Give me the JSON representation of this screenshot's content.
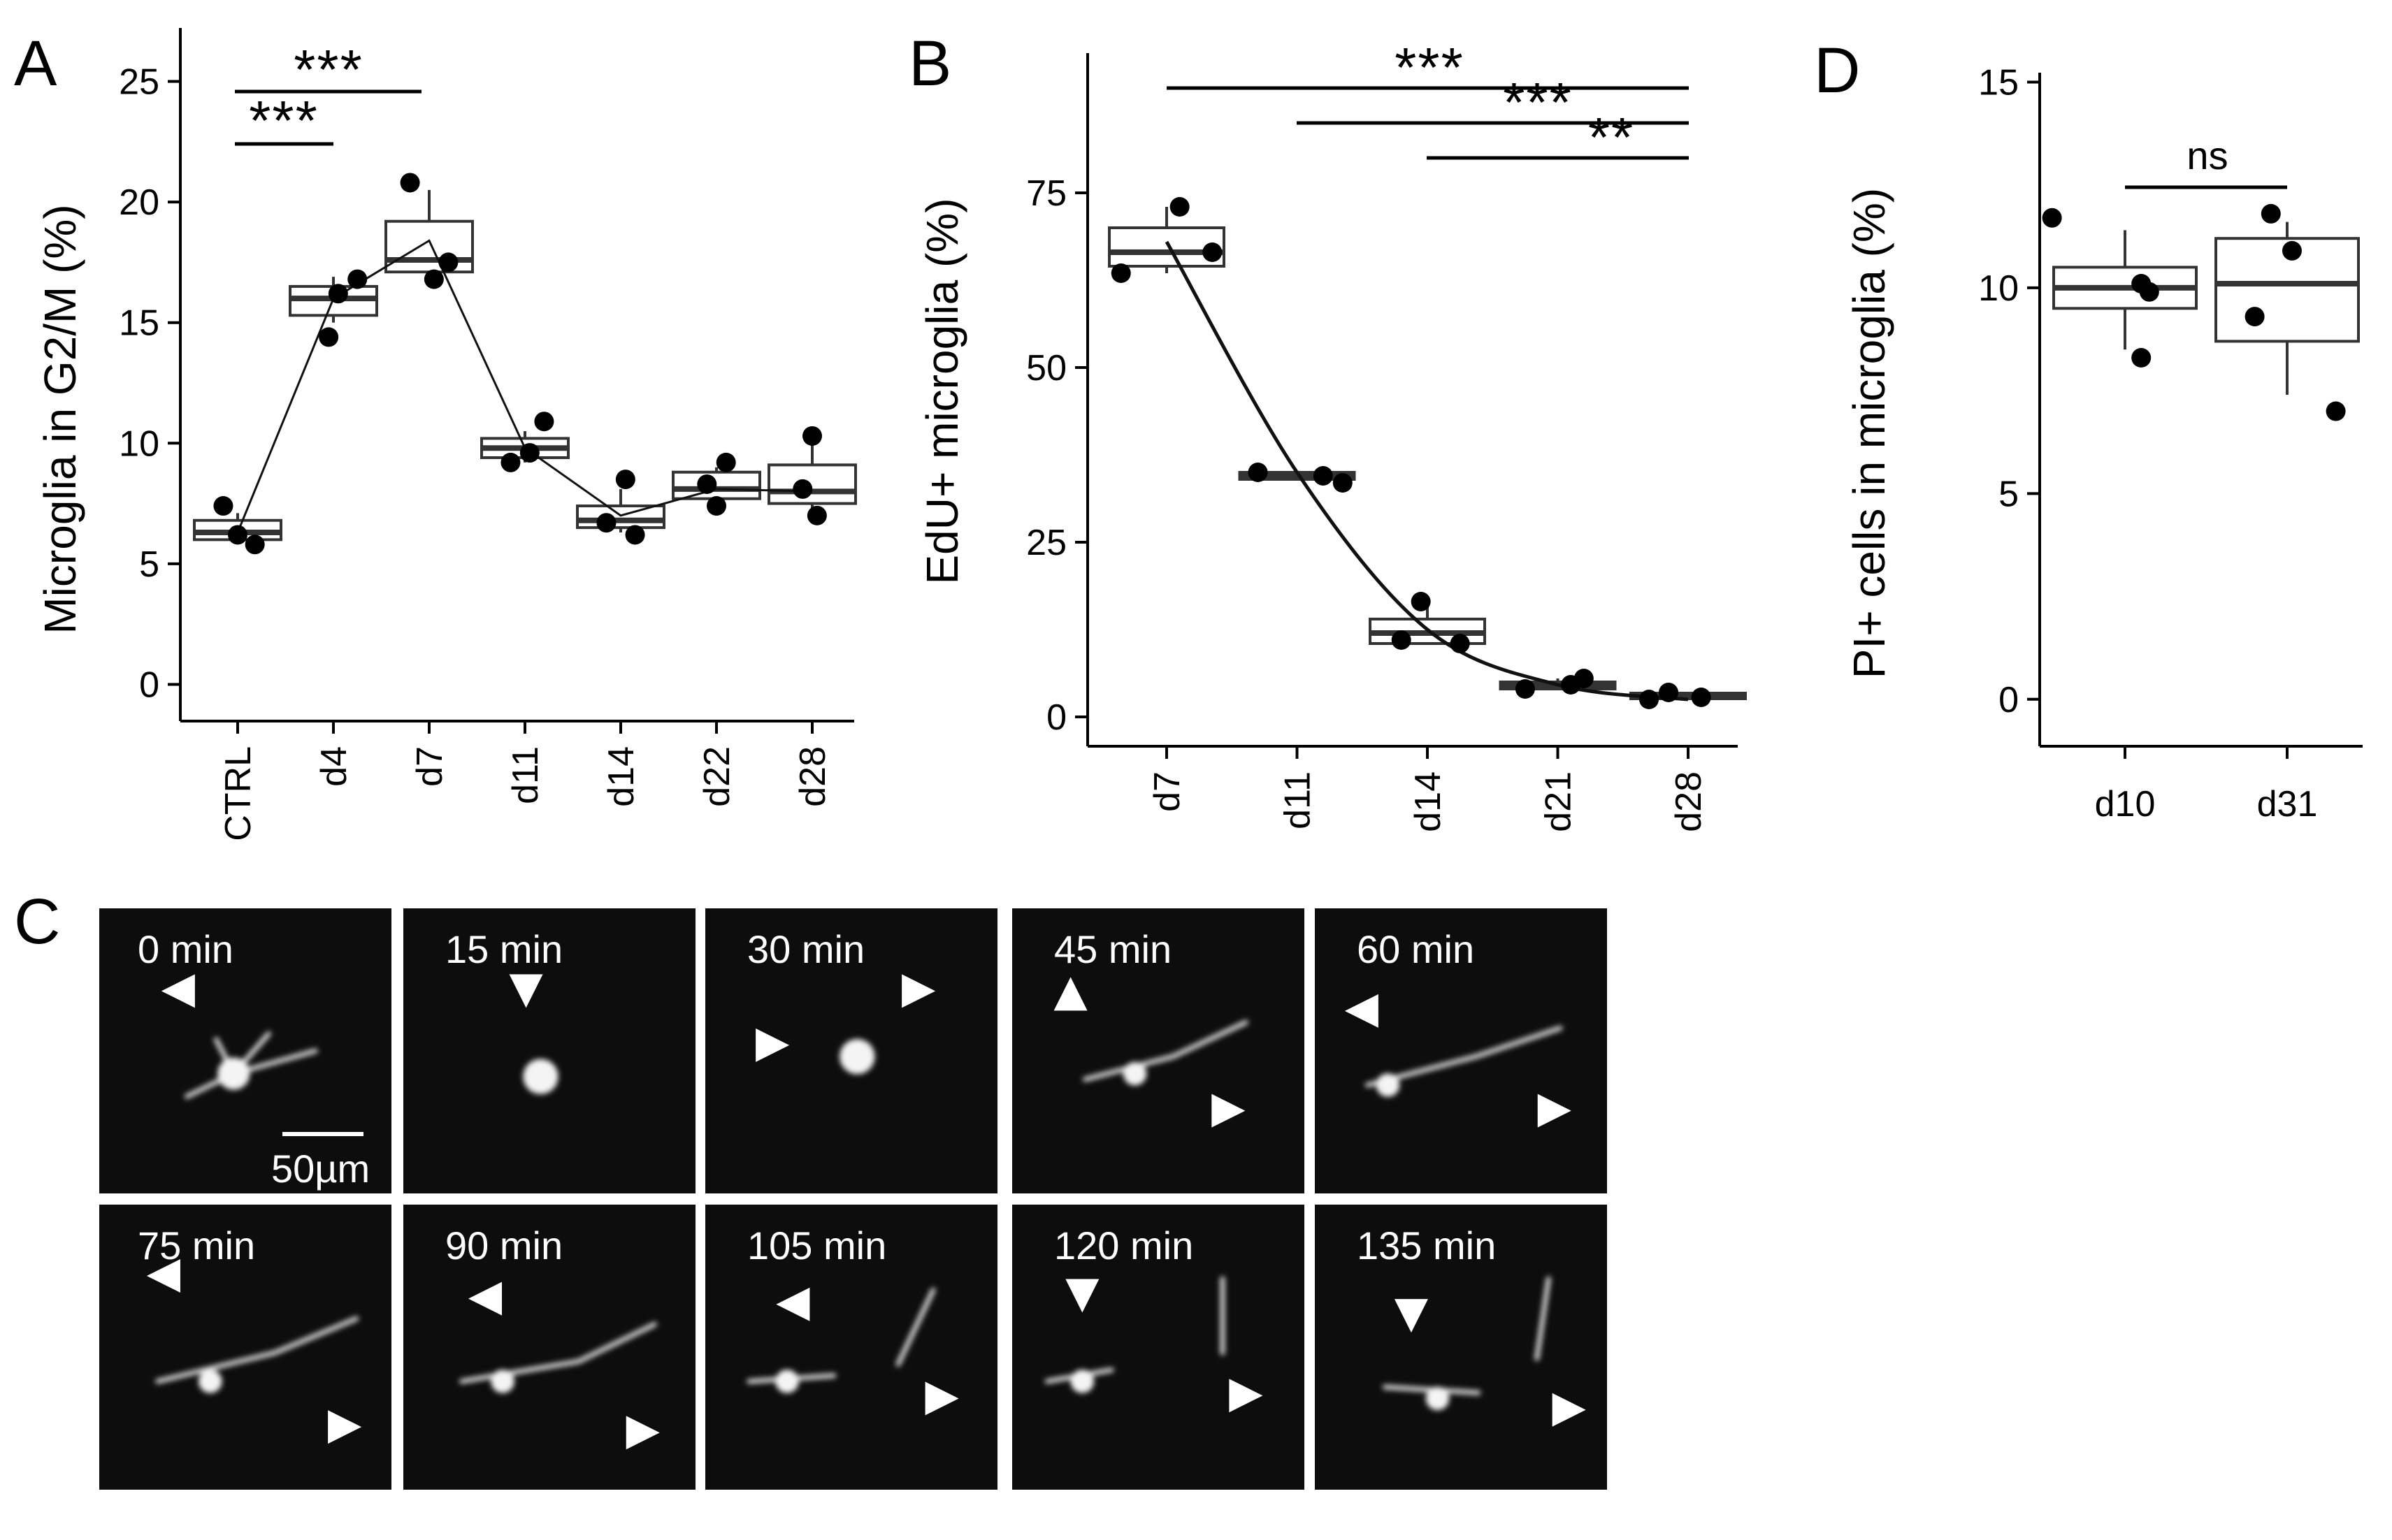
{
  "chart_data": [
    {
      "panel": "A",
      "type": "box",
      "ylabel": "Microglia in G2/M (%)",
      "ylim": [
        -1,
        26
      ],
      "yticks": [
        0,
        5,
        10,
        15,
        20,
        25
      ],
      "categories": [
        "CTRL",
        "d4",
        "d7",
        "d11",
        "d14",
        "d22",
        "d28"
      ],
      "boxes": [
        {
          "q1": 6.0,
          "median": 6.3,
          "q3": 6.8,
          "whisk_lo": 5.9,
          "whisk_hi": 7.1
        },
        {
          "q1": 15.3,
          "median": 16.0,
          "q3": 16.5,
          "whisk_lo": 15.0,
          "whisk_hi": 16.9
        },
        {
          "q1": 17.1,
          "median": 17.6,
          "q3": 19.2,
          "whisk_lo": 17.0,
          "whisk_hi": 20.5
        },
        {
          "q1": 9.4,
          "median": 9.8,
          "q3": 10.2,
          "whisk_lo": 9.2,
          "whisk_hi": 10.5
        },
        {
          "q1": 6.5,
          "median": 6.8,
          "q3": 7.4,
          "whisk_lo": 6.3,
          "whisk_hi": 8.1
        },
        {
          "q1": 7.7,
          "median": 8.1,
          "q3": 8.8,
          "whisk_lo": 7.5,
          "whisk_hi": 9.0
        },
        {
          "q1": 7.5,
          "median": 8.0,
          "q3": 9.1,
          "whisk_lo": 7.1,
          "whisk_hi": 10.0
        }
      ],
      "points": [
        [
          [
            -0.15,
            7.4
          ],
          [
            0.0,
            6.2
          ],
          [
            0.18,
            5.8
          ]
        ],
        [
          [
            -0.05,
            14.4
          ],
          [
            0.05,
            16.2
          ],
          [
            0.25,
            16.8
          ]
        ],
        [
          [
            -0.2,
            20.8
          ],
          [
            0.05,
            16.8
          ],
          [
            0.2,
            17.5
          ]
        ],
        [
          [
            -0.15,
            9.2
          ],
          [
            0.05,
            9.6
          ],
          [
            0.2,
            10.9
          ]
        ],
        [
          [
            -0.15,
            6.7
          ],
          [
            0.05,
            8.5
          ],
          [
            0.15,
            6.2
          ]
        ],
        [
          [
            -0.1,
            8.3
          ],
          [
            0.0,
            7.4
          ],
          [
            0.1,
            9.2
          ]
        ],
        [
          [
            -0.1,
            8.1
          ],
          [
            0.0,
            10.3
          ],
          [
            0.05,
            7.0
          ]
        ]
      ],
      "trend": [
        6.3,
        16.0,
        18.4,
        9.8,
        7.0,
        8.1,
        8.0
      ],
      "significance": [
        {
          "from": "CTRL",
          "to": "d7",
          "label": "***"
        },
        {
          "from": "CTRL",
          "to": "d4",
          "label": "***"
        }
      ]
    },
    {
      "panel": "B",
      "type": "box",
      "ylabel": "EdU+ microglia (%)",
      "ylim": [
        -3,
        95
      ],
      "yticks": [
        0,
        25,
        50,
        75
      ],
      "categories": [
        "d7",
        "d11",
        "d14",
        "d21",
        "d28"
      ],
      "boxes": [
        {
          "q1": 64.5,
          "median": 66.5,
          "q3": 70.0,
          "whisk_lo": 63.5,
          "whisk_hi": 73.0
        },
        {
          "q1": 34.0,
          "median": 34.5,
          "q3": 35.0,
          "whisk_lo": 34.0,
          "whisk_hi": 35.0
        },
        {
          "q1": 10.5,
          "median": 12.0,
          "q3": 14.0,
          "whisk_lo": 10.5,
          "whisk_hi": 16.5
        },
        {
          "q1": 4.0,
          "median": 4.6,
          "q3": 5.0,
          "whisk_lo": 4.0,
          "whisk_hi": 5.5
        },
        {
          "q1": 2.6,
          "median": 3.0,
          "q3": 3.4,
          "whisk_lo": 2.5,
          "whisk_hi": 3.6
        }
      ],
      "points": [
        [
          [
            -0.35,
            63.5
          ],
          [
            0.1,
            73.0
          ],
          [
            0.35,
            66.5
          ]
        ],
        [
          [
            -0.3,
            35.0
          ],
          [
            0.2,
            34.5
          ],
          [
            0.35,
            33.5
          ]
        ],
        [
          [
            -0.2,
            11.0
          ],
          [
            -0.05,
            16.5
          ],
          [
            0.25,
            10.5
          ]
        ],
        [
          [
            -0.25,
            4.0
          ],
          [
            0.2,
            5.5
          ],
          [
            0.1,
            4.6
          ]
        ],
        [
          [
            -0.3,
            2.5
          ],
          [
            -0.15,
            3.5
          ],
          [
            0.1,
            2.8
          ]
        ]
      ],
      "trend": [
        68.0,
        35.0,
        12.5,
        4.6,
        2.5
      ],
      "significance": [
        {
          "from": "d7",
          "to": "d28",
          "label": "***"
        },
        {
          "from": "d11",
          "to": "d28",
          "label": "***"
        },
        {
          "from": "d14",
          "to": "d28",
          "label": "**"
        }
      ]
    },
    {
      "panel": "D",
      "type": "box",
      "ylabel": "PI+ cells in microglia (%)",
      "ylim": [
        -0.7,
        15.5
      ],
      "yticks": [
        0,
        5,
        10,
        15
      ],
      "categories": [
        "d10",
        "d31"
      ],
      "boxes": [
        {
          "q1": 9.5,
          "median": 10.0,
          "q3": 10.5,
          "whisk_lo": 8.5,
          "whisk_hi": 11.4
        },
        {
          "q1": 8.7,
          "median": 10.1,
          "q3": 11.2,
          "whisk_lo": 7.4,
          "whisk_hi": 11.6
        }
      ],
      "points": [
        [
          [
            -0.45,
            11.7
          ],
          [
            0.1,
            8.3
          ],
          [
            0.15,
            9.9
          ],
          [
            0.1,
            10.1
          ]
        ],
        [
          [
            -0.2,
            9.3
          ],
          [
            -0.1,
            11.8
          ],
          [
            0.03,
            10.9
          ],
          [
            0.3,
            7.0
          ]
        ]
      ],
      "significance": [
        {
          "from": "d10",
          "to": "d31",
          "label": "ns"
        }
      ]
    }
  ],
  "panel_labels": {
    "A": "A",
    "B": "B",
    "C": "C",
    "D": "D"
  },
  "micrograph": {
    "frames": [
      "0 min",
      "15 min",
      "30 min",
      "45 min",
      "60 min",
      "75 min",
      "90 min",
      "105 min",
      "120 min",
      "135 min"
    ],
    "scale_bar": "50µm"
  }
}
